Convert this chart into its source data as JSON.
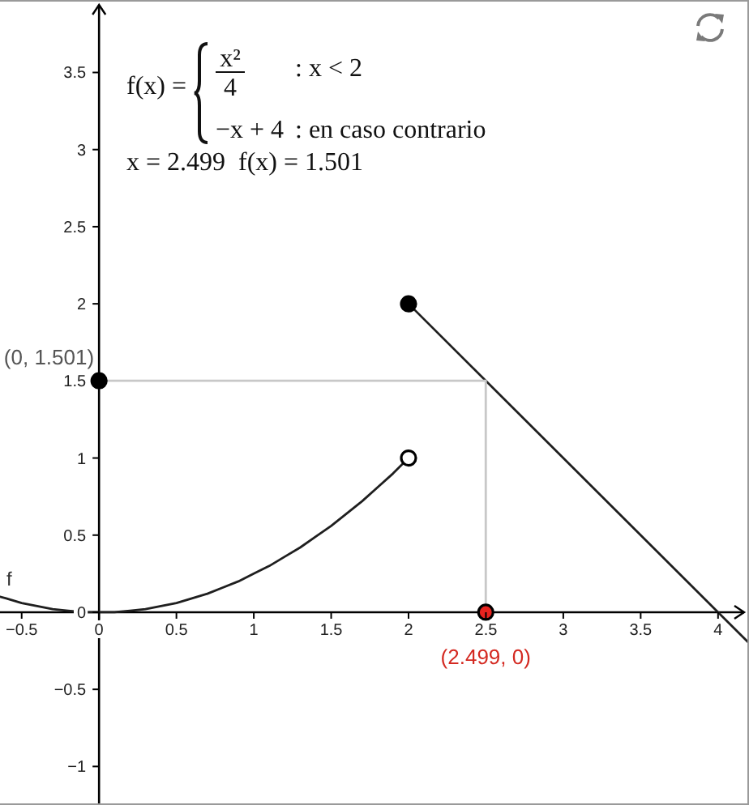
{
  "chart_data": {
    "type": "line",
    "annotations": [
      "f(x) =",
      "x²",
      "4",
      ": x < 2",
      "−x + 4",
      ": en caso contrario",
      "x = 2.499  f(x) = 1.501",
      {
        "text": "(0, 1.501)",
        "x": 0,
        "y": 1.501
      },
      {
        "text": "(2.499, 0)",
        "x": 2.499,
        "y": 0
      }
    ],
    "xlim": [
      -0.64,
      4.2
    ],
    "ylim": [
      -1.25,
      3.97
    ],
    "xticks": [
      {
        "value": -0.5,
        "label": "−0.5"
      },
      0,
      0.5,
      1,
      1.5,
      2,
      2.5,
      3,
      3.5,
      4
    ],
    "yticks": [
      {
        "value": -1,
        "label": "−1"
      },
      {
        "value": -0.5,
        "label": "−0.5"
      },
      0,
      0.5,
      1,
      1.5,
      2,
      2.5,
      3,
      3.5
    ],
    "series": [
      {
        "name": "f",
        "color": "#1f1f1f",
        "x": [
          -0.64,
          -0.6,
          -0.5,
          -0.4,
          -0.3,
          -0.2,
          -0.1,
          0,
          0.1,
          0.2,
          0.3,
          0.4,
          0.5,
          0.6,
          0.7,
          0.8,
          0.9,
          1,
          1.1,
          1.2,
          1.3,
          1.4,
          1.5,
          1.6,
          1.7,
          1.8,
          1.9,
          2
        ],
        "values": [
          0.1,
          0.09,
          0.06,
          0.04,
          0.02,
          0.01,
          0,
          0,
          0,
          0.01,
          0.02,
          0.04,
          0.06,
          0.09,
          0.12,
          0.16,
          0.2,
          0.25,
          0.3,
          0.36,
          0.42,
          0.49,
          0.56,
          0.64,
          0.72,
          0.81,
          0.9,
          1
        ]
      },
      {
        "color": "#1f1f1f",
        "x": [
          2,
          4.2
        ],
        "values": [
          2,
          -0.2
        ]
      },
      {
        "type": "line",
        "color": "#c8c8c8",
        "x": [
          0,
          2.499,
          2.499
        ],
        "values": [
          1.501,
          1.501,
          0
        ]
      },
      {
        "type": "scatter",
        "marker": "circle",
        "color": "#000000",
        "x": [
          2,
          0
        ],
        "values": [
          2,
          1.501
        ]
      },
      {
        "type": "scatter",
        "marker": "circle",
        "color": "#ffffff",
        "x": [
          2
        ],
        "values": [
          1
        ]
      },
      {
        "type": "scatter",
        "marker": "circle",
        "color": "#e8231f",
        "x": [
          2.499
        ],
        "values": [
          0
        ]
      }
    ]
  }
}
